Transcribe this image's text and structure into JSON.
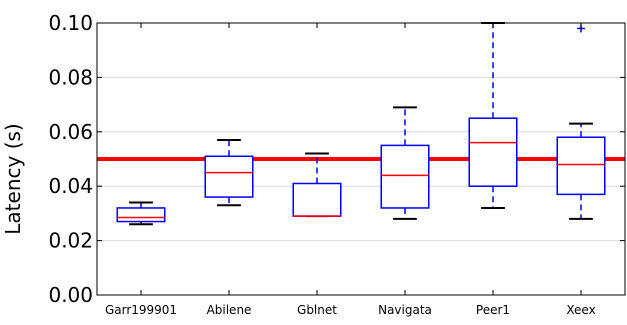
{
  "chart_data": {
    "type": "box",
    "title": "",
    "xlabel": "",
    "ylabel": "Latency (s)",
    "ylim": [
      0.0,
      0.1
    ],
    "yticks": [
      "0.00",
      "0.02",
      "0.04",
      "0.06",
      "0.08",
      "0.10"
    ],
    "grid": true,
    "categories": [
      "Garr199901",
      "Abilene",
      "Gblnet",
      "Navigata",
      "Peer1",
      "Xeex"
    ],
    "boxes": [
      {
        "category": "Garr199901",
        "whisker_low": 0.026,
        "q1": 0.027,
        "median": 0.0285,
        "q3": 0.032,
        "whisker_high": 0.034,
        "outliers": []
      },
      {
        "category": "Abilene",
        "whisker_low": 0.033,
        "q1": 0.036,
        "median": 0.045,
        "q3": 0.051,
        "whisker_high": 0.057,
        "outliers": []
      },
      {
        "category": "Gblnet",
        "whisker_low": 0.029,
        "q1": 0.029,
        "median": 0.029,
        "q3": 0.041,
        "whisker_high": 0.052,
        "outliers": []
      },
      {
        "category": "Navigata",
        "whisker_low": 0.028,
        "q1": 0.032,
        "median": 0.044,
        "q3": 0.055,
        "whisker_high": 0.069,
        "outliers": []
      },
      {
        "category": "Peer1",
        "whisker_low": 0.032,
        "q1": 0.04,
        "median": 0.056,
        "q3": 0.065,
        "whisker_high": 0.1,
        "outliers": []
      },
      {
        "category": "Xeex",
        "whisker_low": 0.028,
        "q1": 0.037,
        "median": 0.048,
        "q3": 0.058,
        "whisker_high": 0.063,
        "outliers": [
          0.098
        ]
      }
    ],
    "reference_line": {
      "y": 0.05
    },
    "colors": {
      "box": "#0000ff",
      "median": "#ff0000",
      "whisker_dashed": "#0000ff",
      "reference": "#ff0000",
      "grid": "#d9d9d9"
    }
  }
}
